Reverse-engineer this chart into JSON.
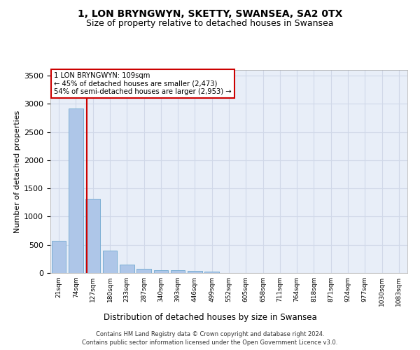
{
  "title": "1, LON BRYNGWYN, SKETTY, SWANSEA, SA2 0TX",
  "subtitle": "Size of property relative to detached houses in Swansea",
  "xlabel": "Distribution of detached houses by size in Swansea",
  "ylabel": "Number of detached properties",
  "bin_labels": [
    "21sqm",
    "74sqm",
    "127sqm",
    "180sqm",
    "233sqm",
    "287sqm",
    "340sqm",
    "393sqm",
    "446sqm",
    "499sqm",
    "552sqm",
    "605sqm",
    "658sqm",
    "711sqm",
    "764sqm",
    "818sqm",
    "871sqm",
    "924sqm",
    "977sqm",
    "1030sqm",
    "1083sqm"
  ],
  "bar_values": [
    570,
    2920,
    1310,
    400,
    150,
    80,
    55,
    50,
    40,
    30,
    0,
    0,
    0,
    0,
    0,
    0,
    0,
    0,
    0,
    0,
    0
  ],
  "bar_color": "#aec6e8",
  "bar_edge_color": "#7bafd4",
  "grid_color": "#d0d8e8",
  "background_color": "#e8eef8",
  "red_line_x": 1.65,
  "annotation_text": "1 LON BRYNGWYN: 109sqm\n← 45% of detached houses are smaller (2,473)\n54% of semi-detached houses are larger (2,953) →",
  "annotation_box_color": "#ffffff",
  "annotation_border_color": "#cc0000",
  "ylim": [
    0,
    3600
  ],
  "yticks": [
    0,
    500,
    1000,
    1500,
    2000,
    2500,
    3000,
    3500
  ],
  "footer_line1": "Contains HM Land Registry data © Crown copyright and database right 2024.",
  "footer_line2": "Contains public sector information licensed under the Open Government Licence v3.0.",
  "title_fontsize": 10,
  "subtitle_fontsize": 9
}
